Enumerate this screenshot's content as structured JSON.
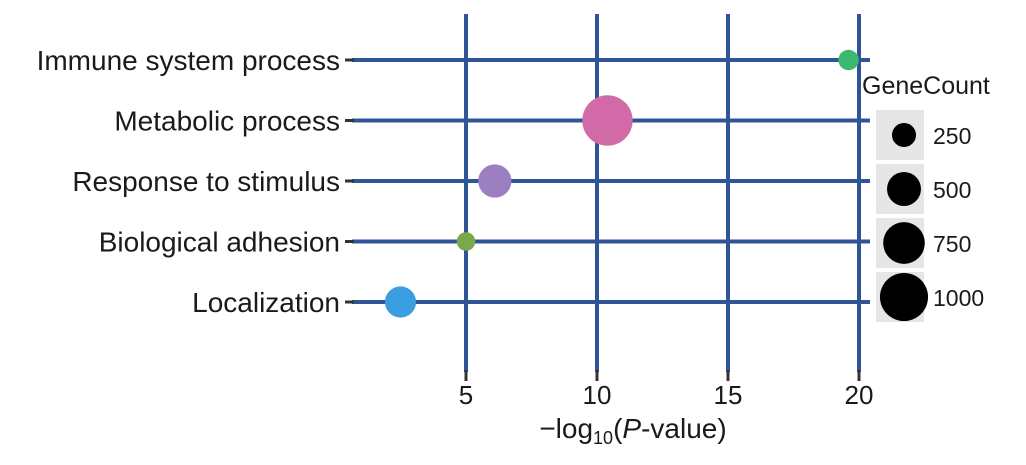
{
  "chart_data": {
    "type": "scatter",
    "title": "",
    "categories": [
      "Immune system process",
      "Metabolic process",
      "Response to stimulus",
      "Biological adhesion",
      "Localization"
    ],
    "points": [
      {
        "category": "Immune system process",
        "x": 19.6,
        "gene_count": 180,
        "color": "#3cb870"
      },
      {
        "category": "Metabolic process",
        "x": 10.4,
        "gene_count": 1100,
        "color": "#d36aa8"
      },
      {
        "category": "Response to stimulus",
        "x": 6.1,
        "gene_count": 480,
        "color": "#9b7fc0"
      },
      {
        "category": "Biological adhesion",
        "x": 5.0,
        "gene_count": 150,
        "color": "#7aa84a"
      },
      {
        "category": "Localization",
        "x": 2.5,
        "gene_count": 420,
        "color": "#3a9ee0"
      }
    ],
    "x_ticks": [
      "5",
      "10",
      "15",
      "20"
    ],
    "x_tick_values": [
      5,
      10,
      15,
      20
    ],
    "xlim": [
      0,
      20.5
    ],
    "xlabel": {
      "prefix": "−log",
      "sub": "10",
      "open": "(",
      "italic": "P",
      "suffix": "-value)"
    },
    "ylabel": "",
    "grid": true,
    "grid_color": "#2f5597",
    "legend": {
      "title": "GeneCount",
      "position": "right",
      "entries": [
        {
          "label": "250",
          "value": 250
        },
        {
          "label": "500",
          "value": 500
        },
        {
          "label": "750",
          "value": 750
        },
        {
          "label": "1000",
          "value": 1000
        }
      ],
      "swatch_bg": "#e6e6e6",
      "marker_color": "#000000"
    }
  }
}
